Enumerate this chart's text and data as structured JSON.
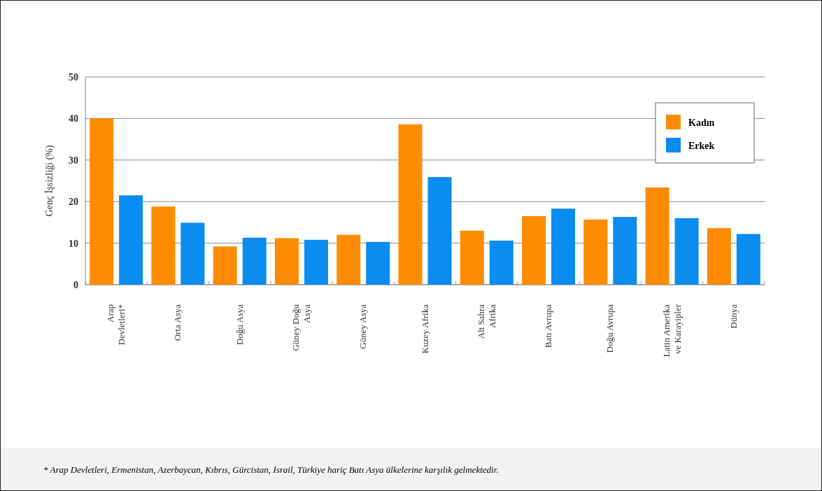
{
  "chart_data": {
    "type": "bar",
    "ylabel": "Genç İşsizliği  (%)",
    "categories": [
      "Arap\nDevletleri*",
      "Orta Asya",
      "Doğu Asya",
      "Güney Doğu\nAsya",
      "Güney Asya",
      "Kuzey Afrika",
      "Alt Sahra\nAfrika",
      "Batı Avrupa",
      "Doğu Avrupa",
      "Latin Amerika\nve Karayipler",
      "Dünya"
    ],
    "series": [
      {
        "name": "Kadın",
        "color": "#ff8c00",
        "values": [
          40,
          18.8,
          9.2,
          11.2,
          12.0,
          38.6,
          13.0,
          16.5,
          15.7,
          23.4,
          13.6
        ]
      },
      {
        "name": "Erkek",
        "color": "#0a8cf0",
        "values": [
          21.5,
          14.9,
          11.3,
          10.8,
          10.3,
          25.9,
          10.6,
          18.3,
          16.3,
          16.0,
          12.2
        ]
      }
    ],
    "ylim": [
      0,
      50
    ],
    "yticks": [
      0,
      10,
      20,
      30,
      40,
      50
    ],
    "grid": "y",
    "legend": "top right",
    "annotations": [
      "* Arap Devletleri, Ermenistan, Azerbaycan, Kıbrıs, Gürcistan, İsrail, Türkiye hariç Batı Asya ülkelerine karşılık gelmektedir."
    ]
  }
}
